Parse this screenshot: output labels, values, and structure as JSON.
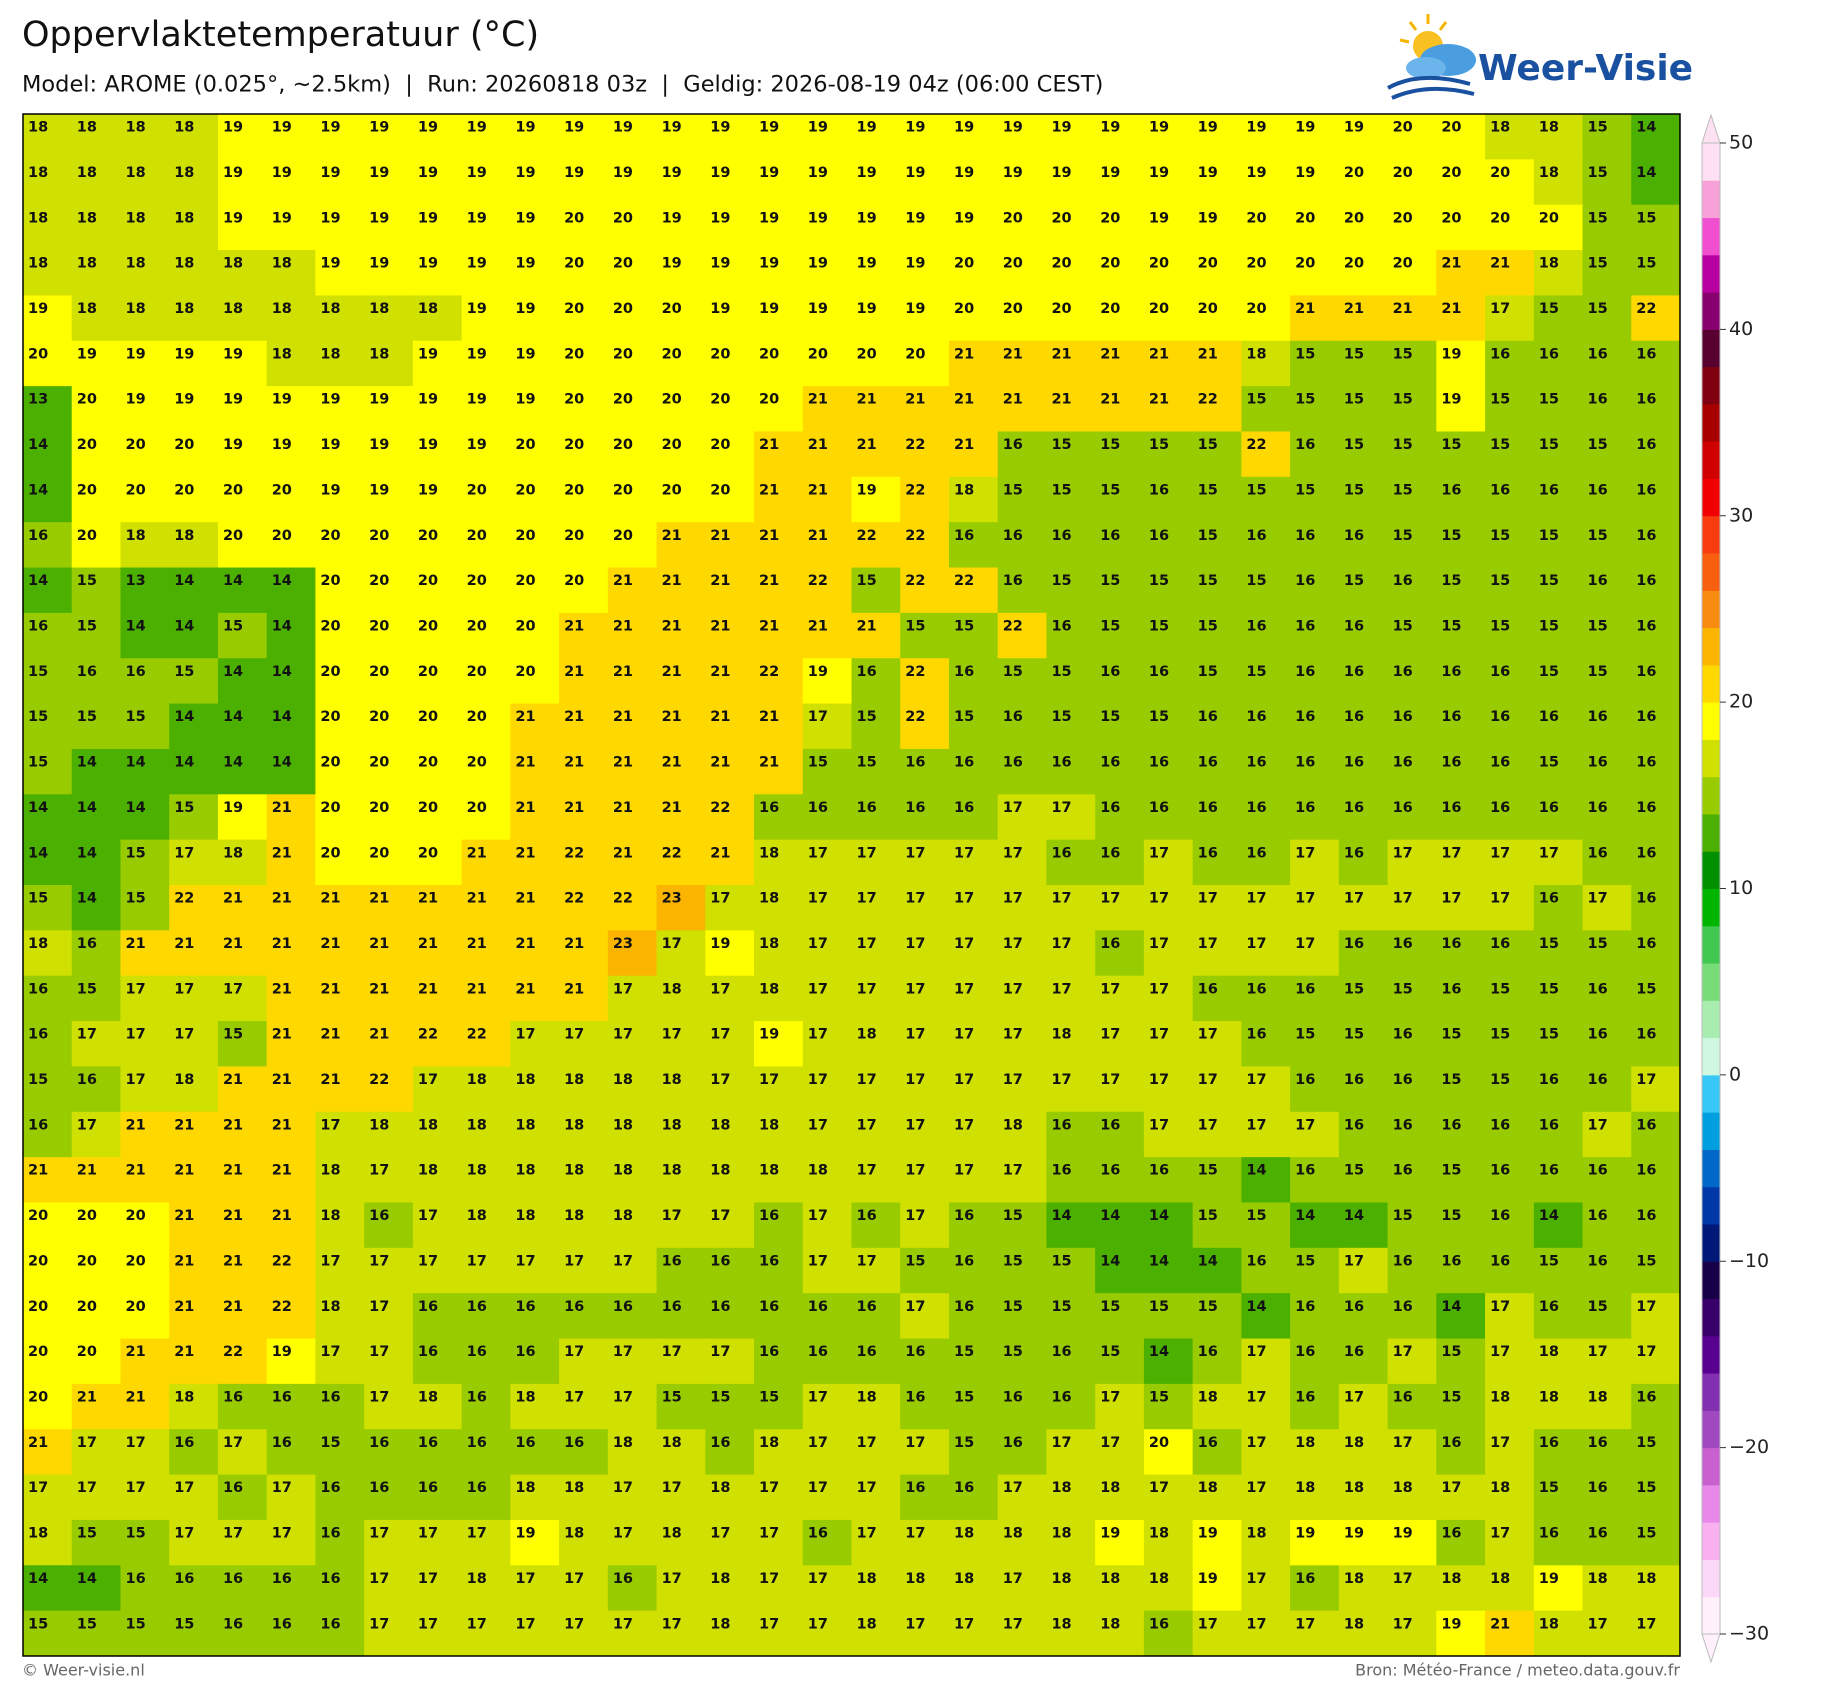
{
  "header": {
    "title": "Oppervlaktetemperatuur (°C)",
    "subtitle": "Model: AROME (0.025°, ~2.5km)  |  Run: 20260818 03z  |  Geldig: 2026-08-19 04z (06:00 CEST)"
  },
  "logo": {
    "text": "Weer-Visie"
  },
  "map": {
    "rows": [
      [
        18,
        18,
        18,
        18,
        19,
        19,
        19,
        19,
        19,
        19,
        19,
        19,
        19,
        19,
        19,
        19,
        19,
        19,
        19,
        19,
        19,
        19,
        19,
        19,
        19,
        19,
        19,
        19,
        20,
        20,
        18,
        18,
        15,
        14
      ],
      [
        18,
        18,
        18,
        18,
        19,
        19,
        19,
        19,
        19,
        19,
        19,
        19,
        19,
        19,
        19,
        19,
        19,
        19,
        19,
        19,
        19,
        19,
        19,
        19,
        19,
        19,
        19,
        20,
        20,
        20,
        20,
        18,
        15,
        14
      ],
      [
        18,
        18,
        18,
        18,
        19,
        19,
        19,
        19,
        19,
        19,
        19,
        20,
        20,
        19,
        19,
        19,
        19,
        19,
        19,
        19,
        20,
        20,
        20,
        19,
        19,
        20,
        20,
        20,
        20,
        20,
        20,
        20,
        15,
        15
      ],
      [
        18,
        18,
        18,
        18,
        18,
        18,
        19,
        19,
        19,
        19,
        19,
        20,
        20,
        19,
        19,
        19,
        19,
        19,
        19,
        20,
        20,
        20,
        20,
        20,
        20,
        20,
        20,
        20,
        20,
        21,
        21,
        18,
        15,
        15
      ],
      [
        19,
        18,
        18,
        18,
        18,
        18,
        18,
        18,
        18,
        19,
        19,
        20,
        20,
        20,
        19,
        19,
        19,
        19,
        19,
        20,
        20,
        20,
        20,
        20,
        20,
        20,
        21,
        21,
        21,
        21,
        17,
        15,
        15,
        22
      ],
      [
        20,
        19,
        19,
        19,
        19,
        18,
        18,
        18,
        19,
        19,
        19,
        20,
        20,
        20,
        20,
        20,
        20,
        20,
        20,
        21,
        21,
        21,
        21,
        21,
        21,
        18,
        15,
        15,
        15,
        19,
        16,
        16,
        16,
        16
      ],
      [
        13,
        20,
        19,
        19,
        19,
        19,
        19,
        19,
        19,
        19,
        19,
        20,
        20,
        20,
        20,
        20,
        21,
        21,
        21,
        21,
        21,
        21,
        21,
        21,
        22,
        15,
        15,
        15,
        15,
        19,
        15,
        15,
        16,
        16
      ],
      [
        14,
        20,
        20,
        20,
        19,
        19,
        19,
        19,
        19,
        19,
        20,
        20,
        20,
        20,
        20,
        21,
        21,
        21,
        22,
        21,
        16,
        15,
        15,
        15,
        15,
        22,
        16,
        15,
        15,
        15,
        15,
        15,
        15,
        16
      ],
      [
        14,
        20,
        20,
        20,
        20,
        20,
        19,
        19,
        19,
        20,
        20,
        20,
        20,
        20,
        20,
        21,
        21,
        19,
        22,
        18,
        15,
        15,
        15,
        16,
        15,
        15,
        15,
        15,
        15,
        16,
        16,
        16,
        16,
        16
      ],
      [
        16,
        20,
        18,
        18,
        20,
        20,
        20,
        20,
        20,
        20,
        20,
        20,
        20,
        21,
        21,
        21,
        21,
        22,
        22,
        16,
        16,
        16,
        16,
        16,
        15,
        16,
        16,
        16,
        15,
        15,
        15,
        15,
        15,
        16
      ],
      [
        14,
        15,
        13,
        14,
        14,
        14,
        20,
        20,
        20,
        20,
        20,
        20,
        21,
        21,
        21,
        21,
        22,
        15,
        22,
        22,
        16,
        15,
        15,
        15,
        15,
        15,
        16,
        15,
        16,
        15,
        15,
        15,
        16,
        16
      ],
      [
        16,
        15,
        14,
        14,
        15,
        14,
        20,
        20,
        20,
        20,
        20,
        21,
        21,
        21,
        21,
        21,
        21,
        21,
        15,
        15,
        22,
        16,
        15,
        15,
        15,
        16,
        16,
        16,
        15,
        15,
        15,
        15,
        15,
        16
      ],
      [
        15,
        16,
        16,
        15,
        14,
        14,
        20,
        20,
        20,
        20,
        20,
        21,
        21,
        21,
        21,
        22,
        19,
        16,
        22,
        16,
        15,
        15,
        16,
        16,
        15,
        15,
        16,
        16,
        16,
        16,
        16,
        15,
        15,
        16
      ],
      [
        15,
        15,
        15,
        14,
        14,
        14,
        20,
        20,
        20,
        20,
        21,
        21,
        21,
        21,
        21,
        21,
        17,
        15,
        22,
        15,
        16,
        15,
        15,
        15,
        16,
        16,
        16,
        16,
        16,
        16,
        16,
        16,
        16,
        16
      ],
      [
        15,
        14,
        14,
        14,
        14,
        14,
        20,
        20,
        20,
        20,
        21,
        21,
        21,
        21,
        21,
        21,
        15,
        15,
        16,
        16,
        16,
        16,
        16,
        16,
        16,
        16,
        16,
        16,
        16,
        16,
        16,
        15,
        16,
        16
      ],
      [
        14,
        14,
        14,
        15,
        19,
        21,
        20,
        20,
        20,
        20,
        21,
        21,
        21,
        21,
        22,
        16,
        16,
        16,
        16,
        16,
        17,
        17,
        16,
        16,
        16,
        16,
        16,
        16,
        16,
        16,
        16,
        16,
        16,
        16
      ],
      [
        14,
        14,
        15,
        17,
        18,
        21,
        20,
        20,
        20,
        21,
        21,
        22,
        21,
        22,
        21,
        18,
        17,
        17,
        17,
        17,
        17,
        16,
        16,
        17,
        16,
        16,
        17,
        16,
        17,
        17,
        17,
        17,
        16,
        16
      ],
      [
        15,
        14,
        15,
        22,
        21,
        21,
        21,
        21,
        21,
        21,
        21,
        22,
        22,
        23,
        17,
        18,
        17,
        17,
        17,
        17,
        17,
        17,
        17,
        17,
        17,
        17,
        17,
        17,
        17,
        17,
        17,
        16,
        17,
        16
      ],
      [
        18,
        16,
        21,
        21,
        21,
        21,
        21,
        21,
        21,
        21,
        21,
        21,
        23,
        17,
        19,
        18,
        17,
        17,
        17,
        17,
        17,
        17,
        16,
        17,
        17,
        17,
        17,
        16,
        16,
        16,
        16,
        15,
        15,
        16
      ],
      [
        16,
        15,
        17,
        17,
        17,
        21,
        21,
        21,
        21,
        21,
        21,
        21,
        17,
        18,
        17,
        18,
        17,
        17,
        17,
        17,
        17,
        17,
        17,
        17,
        16,
        16,
        16,
        15,
        15,
        16,
        15,
        15,
        16,
        15
      ],
      [
        16,
        17,
        17,
        17,
        15,
        21,
        21,
        21,
        22,
        22,
        17,
        17,
        17,
        17,
        17,
        19,
        17,
        18,
        17,
        17,
        17,
        18,
        17,
        17,
        17,
        16,
        15,
        15,
        16,
        15,
        15,
        15,
        16,
        16
      ],
      [
        15,
        16,
        17,
        18,
        21,
        21,
        21,
        22,
        17,
        18,
        18,
        18,
        18,
        18,
        17,
        17,
        17,
        17,
        17,
        17,
        17,
        17,
        17,
        17,
        17,
        17,
        16,
        16,
        16,
        15,
        15,
        16,
        16,
        17
      ],
      [
        16,
        17,
        21,
        21,
        21,
        21,
        17,
        18,
        18,
        18,
        18,
        18,
        18,
        18,
        18,
        18,
        17,
        17,
        17,
        17,
        18,
        16,
        16,
        17,
        17,
        17,
        17,
        16,
        16,
        16,
        16,
        16,
        17,
        16
      ],
      [
        21,
        21,
        21,
        21,
        21,
        21,
        18,
        17,
        18,
        18,
        18,
        18,
        18,
        18,
        18,
        18,
        18,
        17,
        17,
        17,
        17,
        16,
        16,
        16,
        15,
        14,
        16,
        15,
        16,
        15,
        16,
        16,
        16,
        16
      ],
      [
        20,
        20,
        20,
        21,
        21,
        21,
        18,
        16,
        17,
        18,
        18,
        18,
        18,
        17,
        17,
        16,
        17,
        16,
        17,
        16,
        15,
        14,
        14,
        14,
        15,
        15,
        14,
        14,
        15,
        15,
        16,
        14,
        16,
        16
      ],
      [
        20,
        20,
        20,
        21,
        21,
        22,
        17,
        17,
        17,
        17,
        17,
        17,
        17,
        16,
        16,
        16,
        17,
        17,
        15,
        16,
        15,
        15,
        14,
        14,
        14,
        16,
        15,
        17,
        16,
        16,
        16,
        15,
        16,
        15
      ],
      [
        20,
        20,
        20,
        21,
        21,
        22,
        18,
        17,
        16,
        16,
        16,
        16,
        16,
        16,
        16,
        16,
        16,
        16,
        17,
        16,
        15,
        15,
        15,
        15,
        15,
        14,
        16,
        16,
        16,
        14,
        17,
        16,
        15,
        17
      ],
      [
        20,
        20,
        21,
        21,
        22,
        19,
        17,
        17,
        16,
        16,
        16,
        17,
        17,
        17,
        17,
        16,
        16,
        16,
        16,
        15,
        15,
        16,
        15,
        14,
        16,
        17,
        16,
        16,
        17,
        15,
        17,
        18,
        17,
        17
      ],
      [
        20,
        21,
        21,
        18,
        16,
        16,
        16,
        17,
        18,
        16,
        18,
        17,
        17,
        15,
        15,
        15,
        17,
        18,
        16,
        15,
        16,
        16,
        17,
        15,
        18,
        17,
        16,
        17,
        16,
        15,
        18,
        18,
        18,
        16
      ],
      [
        21,
        17,
        17,
        16,
        17,
        16,
        15,
        16,
        16,
        16,
        16,
        16,
        18,
        18,
        16,
        18,
        17,
        17,
        17,
        15,
        16,
        17,
        17,
        20,
        16,
        17,
        18,
        18,
        17,
        16,
        17,
        16,
        16,
        15
      ],
      [
        17,
        17,
        17,
        17,
        16,
        17,
        16,
        16,
        16,
        16,
        18,
        18,
        17,
        17,
        18,
        17,
        17,
        17,
        16,
        16,
        17,
        18,
        18,
        17,
        18,
        17,
        18,
        18,
        18,
        17,
        18,
        15,
        16,
        15
      ],
      [
        18,
        15,
        15,
        17,
        17,
        17,
        16,
        17,
        17,
        17,
        19,
        18,
        17,
        18,
        17,
        17,
        16,
        17,
        17,
        18,
        18,
        18,
        19,
        18,
        19,
        18,
        19,
        19,
        19,
        16,
        17,
        16,
        16,
        15
      ],
      [
        14,
        14,
        16,
        16,
        16,
        16,
        16,
        17,
        17,
        18,
        17,
        17,
        16,
        17,
        18,
        17,
        17,
        18,
        18,
        18,
        17,
        18,
        18,
        18,
        19,
        17,
        16,
        18,
        17,
        18,
        18,
        19,
        18,
        18
      ],
      [
        15,
        15,
        15,
        15,
        16,
        16,
        16,
        17,
        17,
        17,
        17,
        17,
        17,
        17,
        18,
        17,
        17,
        18,
        17,
        17,
        17,
        18,
        18,
        16,
        17,
        17,
        17,
        18,
        17,
        19,
        21,
        18,
        17,
        17
      ]
    ]
  },
  "colorbar": {
    "lim": [
      -30,
      50
    ],
    "ticks": [
      50,
      40,
      30,
      20,
      10,
      0,
      {
        "value": -10,
        "label": "−10"
      },
      {
        "value": -20,
        "label": "−20"
      },
      {
        "value": -30,
        "label": "−30"
      }
    ],
    "colors": [
      "#fff0fc",
      "#fcd8f8",
      "#f8b0f0",
      "#e888e8",
      "#c860d0",
      "#a048c0",
      "#8030b0",
      "#580090",
      "#380068",
      "#180048",
      "#001878",
      "#0038a8",
      "#0068c8",
      "#00a0e0",
      "#38c8f8",
      "#d0f8e0",
      "#a8ecb0",
      "#78dc78",
      "#40c850",
      "#00b400",
      "#009000",
      "#4cb000",
      "#98cc00",
      "#d0e000",
      "#ffff00",
      "#ffd800",
      "#fbb400",
      "#f88c10",
      "#f86010",
      "#f83c10",
      "#f00000",
      "#d00000",
      "#a80000",
      "#800010",
      "#580030",
      "#880070",
      "#b800a0",
      "#f050d0",
      "#f8a0d8",
      "#fde0f2"
    ]
  },
  "footer": {
    "left": "© Weer-visie.nl",
    "right": "Bron: Météo-France / meteo.data.gouv.fr"
  }
}
